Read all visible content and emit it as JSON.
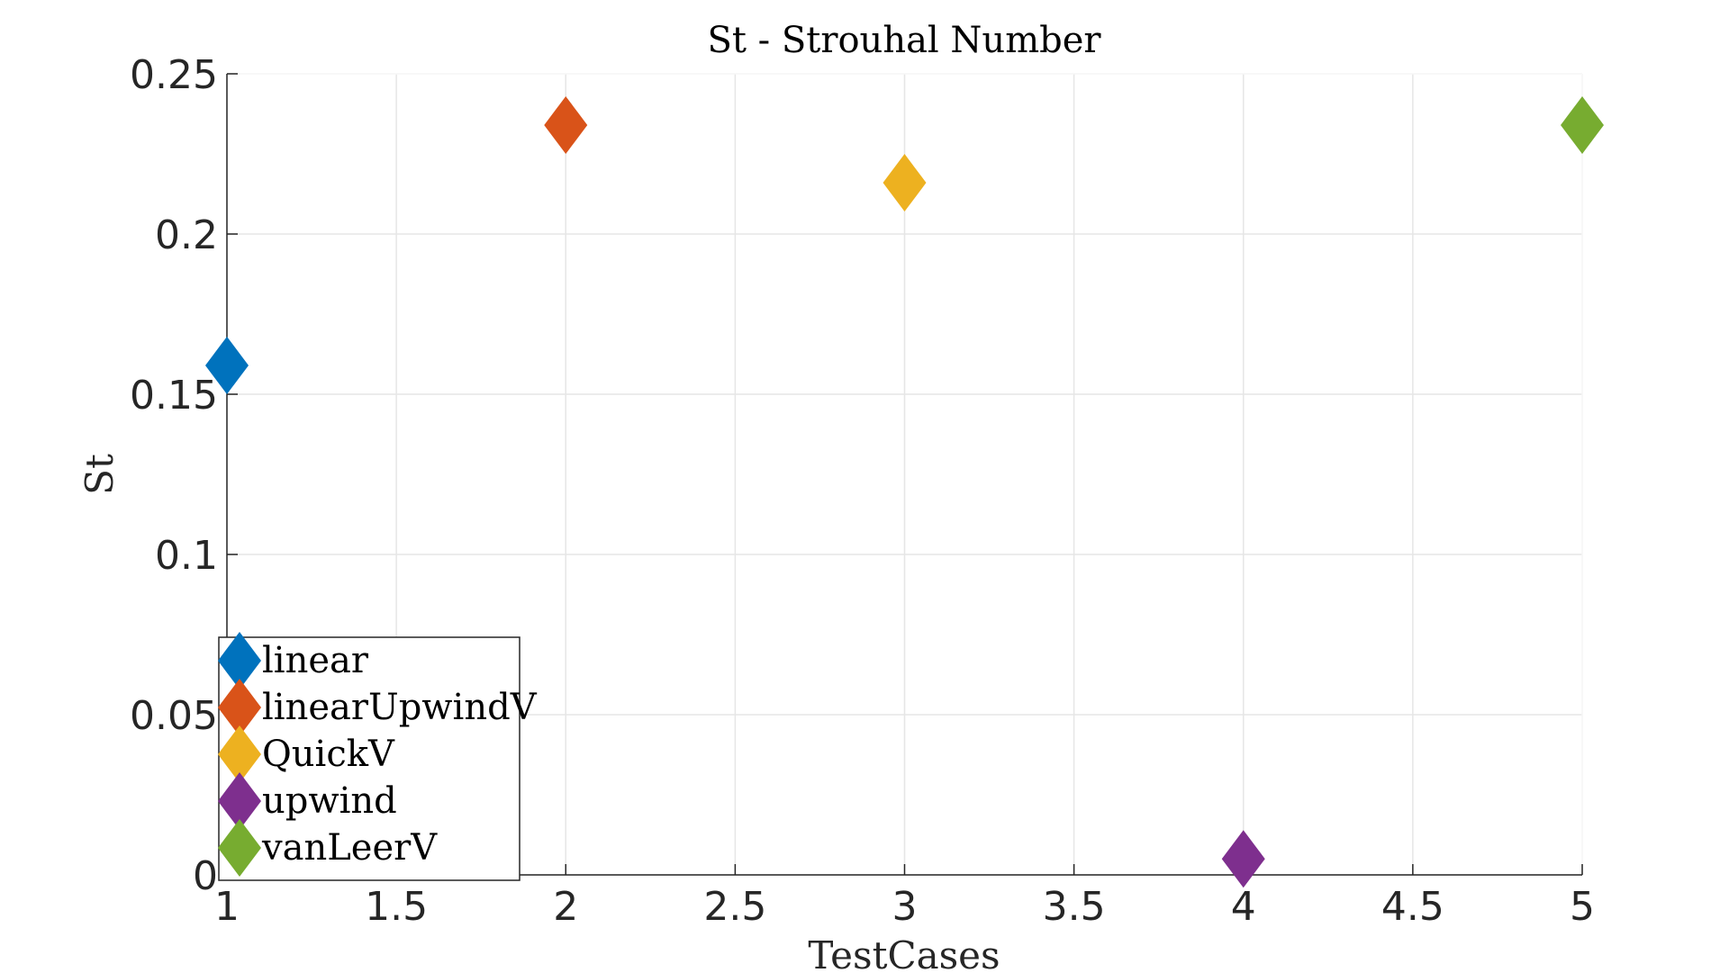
{
  "chart_data": {
    "type": "scatter",
    "title": "St - Strouhal Number",
    "xlabel": "TestCases",
    "ylabel": "St",
    "xlim": [
      1,
      5
    ],
    "ylim": [
      0,
      0.25
    ],
    "xticks": [
      "1",
      "1.5",
      "2",
      "2.5",
      "3",
      "3.5",
      "4",
      "4.5",
      "5"
    ],
    "yticks": [
      "0",
      "0.05",
      "0.1",
      "0.15",
      "0.2",
      "0.25"
    ],
    "grid": true,
    "marker": "diamond",
    "legend_position": "bottom-left",
    "series": [
      {
        "name": "linear",
        "color": "#0072BD",
        "x": [
          1
        ],
        "y": [
          0.159
        ]
      },
      {
        "name": "linearUpwindV",
        "color": "#D95319",
        "x": [
          2
        ],
        "y": [
          0.234
        ]
      },
      {
        "name": "QuickV",
        "color": "#EDB120",
        "x": [
          3
        ],
        "y": [
          0.216
        ]
      },
      {
        "name": "upwind",
        "color": "#7E2F8E",
        "x": [
          4
        ],
        "y": [
          0.005
        ]
      },
      {
        "name": "vanLeerV",
        "color": "#77AC30",
        "x": [
          5
        ],
        "y": [
          0.234
        ]
      }
    ]
  }
}
